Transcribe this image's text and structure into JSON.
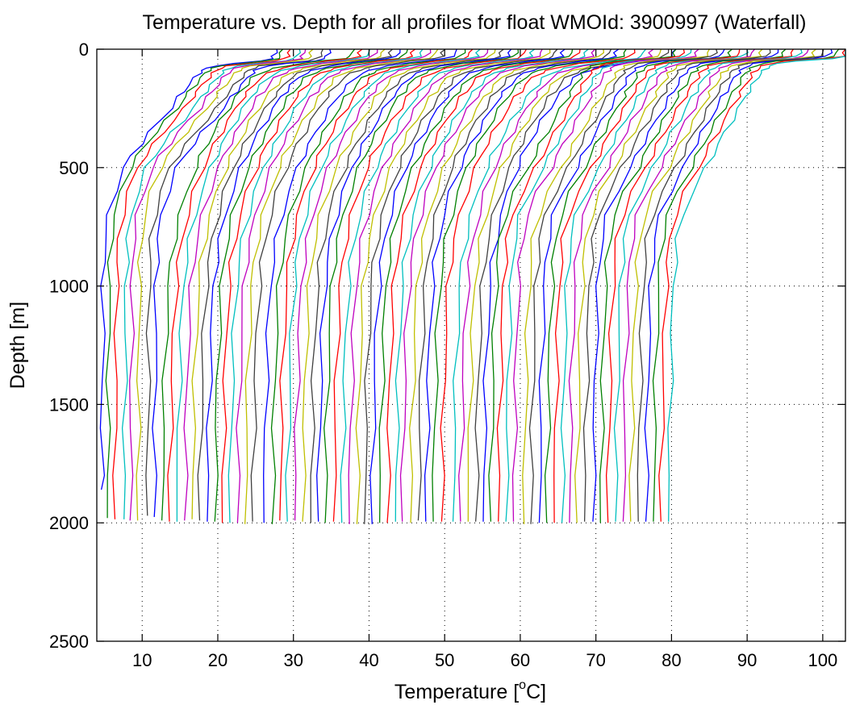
{
  "chart_data": {
    "type": "line",
    "title": "Temperature vs. Depth for all profiles for float WMOId: 3900997 (Waterfall)",
    "xlabel": {
      "pre": "Temperature [",
      "sup": "o",
      "post": "C]"
    },
    "ylabel": "Depth [m]",
    "xlim": [
      4,
      103
    ],
    "ylim": [
      0,
      2500
    ],
    "y_reversed": true,
    "x_ticks": [
      10,
      20,
      30,
      40,
      50,
      60,
      70,
      80,
      90,
      100
    ],
    "y_ticks": [
      0,
      500,
      1000,
      1500,
      2000,
      2500
    ],
    "grid": "dotted",
    "legend": "none",
    "series_colors": [
      "#0000ff",
      "#008000",
      "#ff0000",
      "#00bfbf",
      "#bf00bf",
      "#bfbf00",
      "#404040"
    ],
    "depths": [
      0,
      15,
      30,
      40,
      50,
      60,
      70,
      80,
      90,
      100,
      120,
      150,
      180,
      200,
      250,
      300,
      350,
      400,
      450,
      500,
      600,
      700,
      800,
      900,
      1000,
      1200,
      1400,
      1600,
      1800,
      2000
    ],
    "deep_temperature_2000m": [
      4.6,
      5.4,
      6.4,
      7.6,
      8.4,
      9.4,
      10.7,
      11.6,
      12.6,
      13.6,
      14.6,
      15.6,
      16.6,
      17.6,
      18.6,
      19.6,
      20.6,
      21.6,
      22.6,
      23.6,
      24.6,
      26.1,
      27.2,
      28.2,
      29.2,
      30.2,
      31.2,
      32.3,
      33.3,
      34.2,
      35.3,
      36.4,
      37.4,
      38.4,
      39.4,
      40.4,
      41.4,
      42.4,
      43.5,
      44.4,
      45.5,
      46.5,
      47.5,
      48.5,
      49.6,
      51.1,
      52.1,
      53.1,
      54.1,
      55.1,
      56.1,
      57.1,
      58.1,
      59.1,
      60.5,
      61.4,
      62.5,
      63.5,
      64.5,
      65.5,
      66.5,
      67.5,
      68.5,
      69.6,
      70.6,
      71.6,
      72.6,
      73.6,
      74.6,
      75.6,
      76.6,
      77.6,
      78.6,
      79.6
    ],
    "series_end_depth": [
      1860,
      1980,
      1985,
      1985,
      1990,
      1990,
      1970,
      1975,
      1990,
      1995,
      1995,
      1990,
      1985,
      1990,
      1995,
      1995,
      2000,
      2000,
      2000,
      2005,
      1995,
      2000,
      2005,
      1990,
      1995,
      1990,
      1995,
      2000,
      1995,
      2000,
      1995,
      2000,
      2005,
      2005,
      2005,
      2005,
      2000,
      2000,
      1995,
      1995,
      2000,
      1990,
      1995,
      1995,
      1995,
      1995,
      1995,
      1995,
      1995,
      1995,
      1995,
      1995,
      1995,
      1995,
      2005,
      2005,
      2000,
      2000,
      2000,
      2000,
      2000,
      2000,
      1995,
      1995,
      2000,
      2000,
      1995,
      1995,
      1995,
      1995,
      1995,
      1995,
      1995,
      1995
    ],
    "profile_shape_offsets_degC": {
      "early_profiles_1_8": [
        23.2,
        23.0,
        22.8,
        22.5,
        21.0,
        17.8,
        15.0,
        14.0,
        13.4,
        13.0,
        12.4,
        11.6,
        10.8,
        10.3,
        9.2,
        7.8,
        6.4,
        5.2,
        4.0,
        3.0,
        1.8,
        1.0,
        0.5,
        0.35,
        0.25,
        0.2,
        0.15,
        0.1,
        0.05,
        0.0
      ],
      "middle_profiles_9_50": [
        25.5,
        25.2,
        25.0,
        24.0,
        21.0,
        18.5,
        16.5,
        15.0,
        14.0,
        13.2,
        12.0,
        11.2,
        10.4,
        9.8,
        8.8,
        7.8,
        6.9,
        6.0,
        5.2,
        4.5,
        3.3,
        2.4,
        1.7,
        1.2,
        0.9,
        0.55,
        0.35,
        0.2,
        0.1,
        0.0
      ],
      "late_profiles_51_74": [
        24.5,
        24.3,
        24.0,
        22.0,
        16.5,
        14.5,
        13.5,
        13.0,
        12.6,
        12.2,
        11.8,
        11.2,
        10.6,
        10.2,
        9.3,
        8.4,
        7.5,
        6.6,
        5.8,
        5.0,
        3.2,
        1.9,
        1.2,
        0.9,
        0.7,
        0.45,
        0.3,
        0.18,
        0.08,
        0.0
      ]
    }
  }
}
